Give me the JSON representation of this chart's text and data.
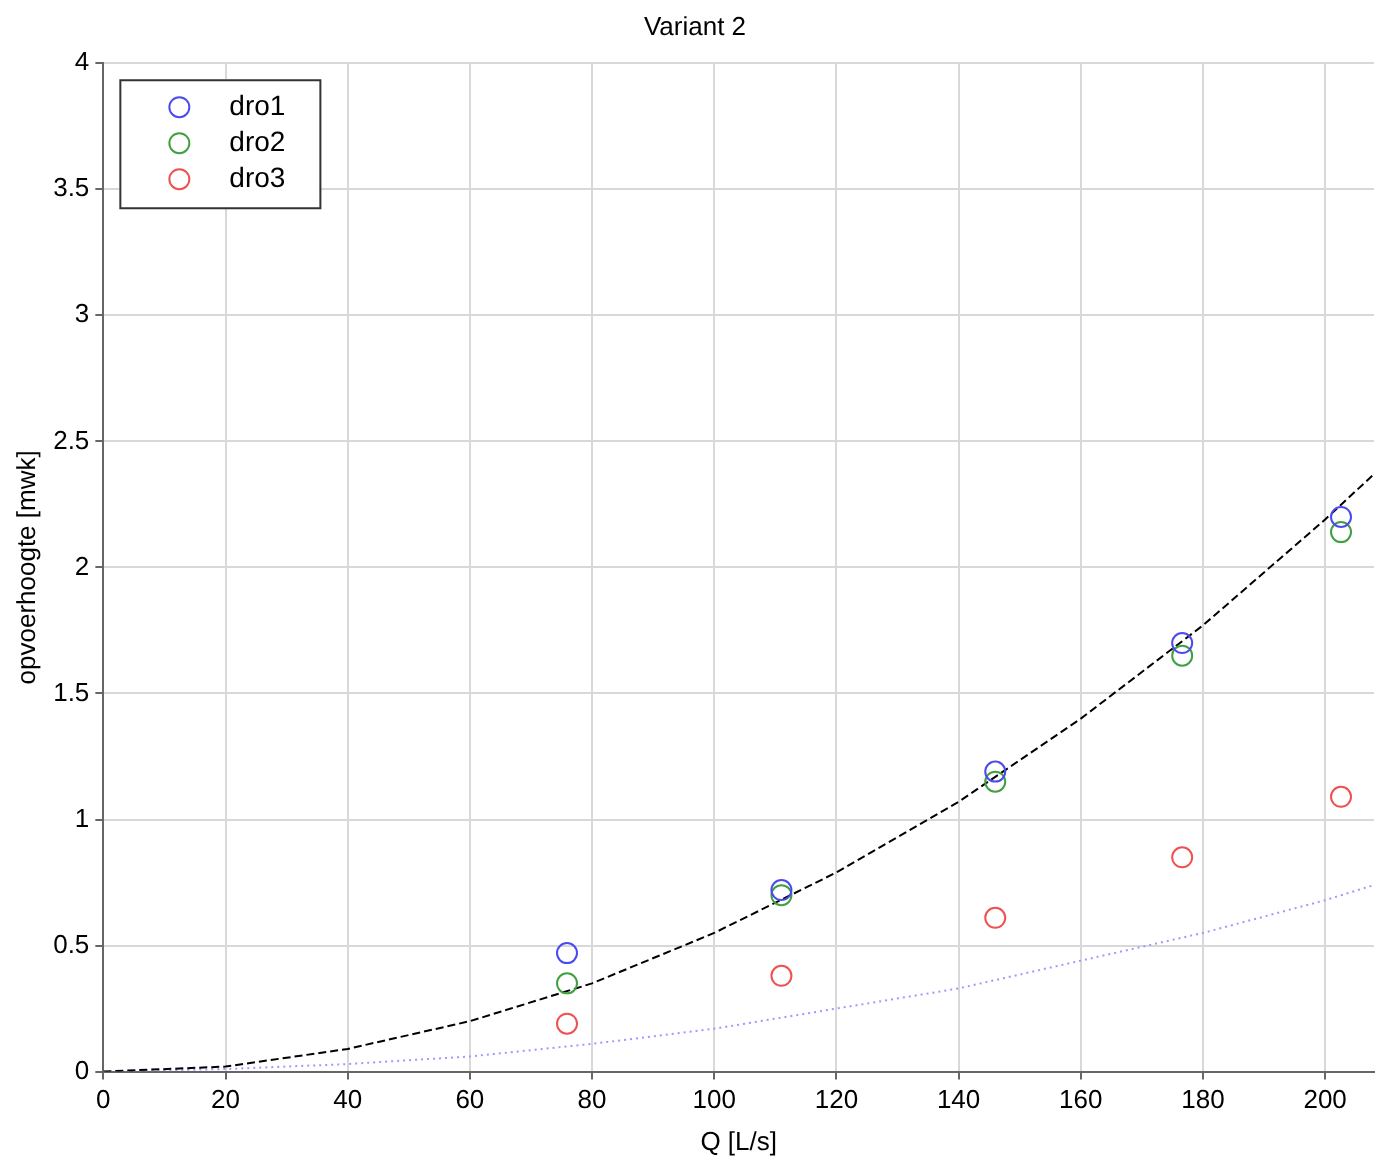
{
  "chart_data": {
    "type": "scatter",
    "title": "Variant 2",
    "xlabel": "Q [L/s]",
    "ylabel": "opvoerhoogte [mwk]",
    "xlim": [
      0,
      208
    ],
    "xticks": [
      0,
      20,
      40,
      60,
      80,
      100,
      120,
      140,
      160,
      180,
      200
    ],
    "ylim": [
      0,
      4
    ],
    "yticks": [
      0,
      0.5,
      1,
      1.5,
      2,
      2.5,
      3,
      3.5,
      4
    ],
    "grid": true,
    "legend": "top left",
    "marker": "circle",
    "series": [
      {
        "name": "dro1",
        "color": "#4a4af0",
        "x": [
          75.9,
          111,
          146,
          176.6,
          202.6
        ],
        "values": [
          0.47,
          0.72,
          1.19,
          1.7,
          2.2
        ]
      },
      {
        "name": "dro2",
        "color": "#40a040",
        "x": [
          75.9,
          111,
          146,
          176.6,
          202.6
        ],
        "values": [
          0.35,
          0.7,
          1.15,
          1.65,
          2.14
        ]
      },
      {
        "name": "dro3",
        "color": "#f05050",
        "x": [
          75.9,
          111,
          146,
          176.6,
          202.6
        ],
        "values": [
          0.19,
          0.38,
          0.61,
          0.85,
          1.09
        ]
      },
      {
        "type": "line",
        "color": "#000000",
        "line_style": "dashed",
        "marker": "none",
        "x": [
          0,
          20,
          40,
          60,
          80,
          100,
          120,
          140,
          160,
          180,
          200,
          208
        ],
        "values": [
          0,
          0.02,
          0.09,
          0.2,
          0.35,
          0.55,
          0.79,
          1.07,
          1.4,
          1.77,
          2.19,
          2.37
        ]
      },
      {
        "type": "line",
        "color": "#9a9aff",
        "line_style": "dotted",
        "marker": "none",
        "x": [
          0,
          20,
          40,
          60,
          80,
          100,
          120,
          140,
          160,
          180,
          200,
          208
        ],
        "values": [
          0,
          0.01,
          0.03,
          0.06,
          0.11,
          0.17,
          0.25,
          0.33,
          0.44,
          0.55,
          0.68,
          0.74
        ]
      }
    ]
  }
}
